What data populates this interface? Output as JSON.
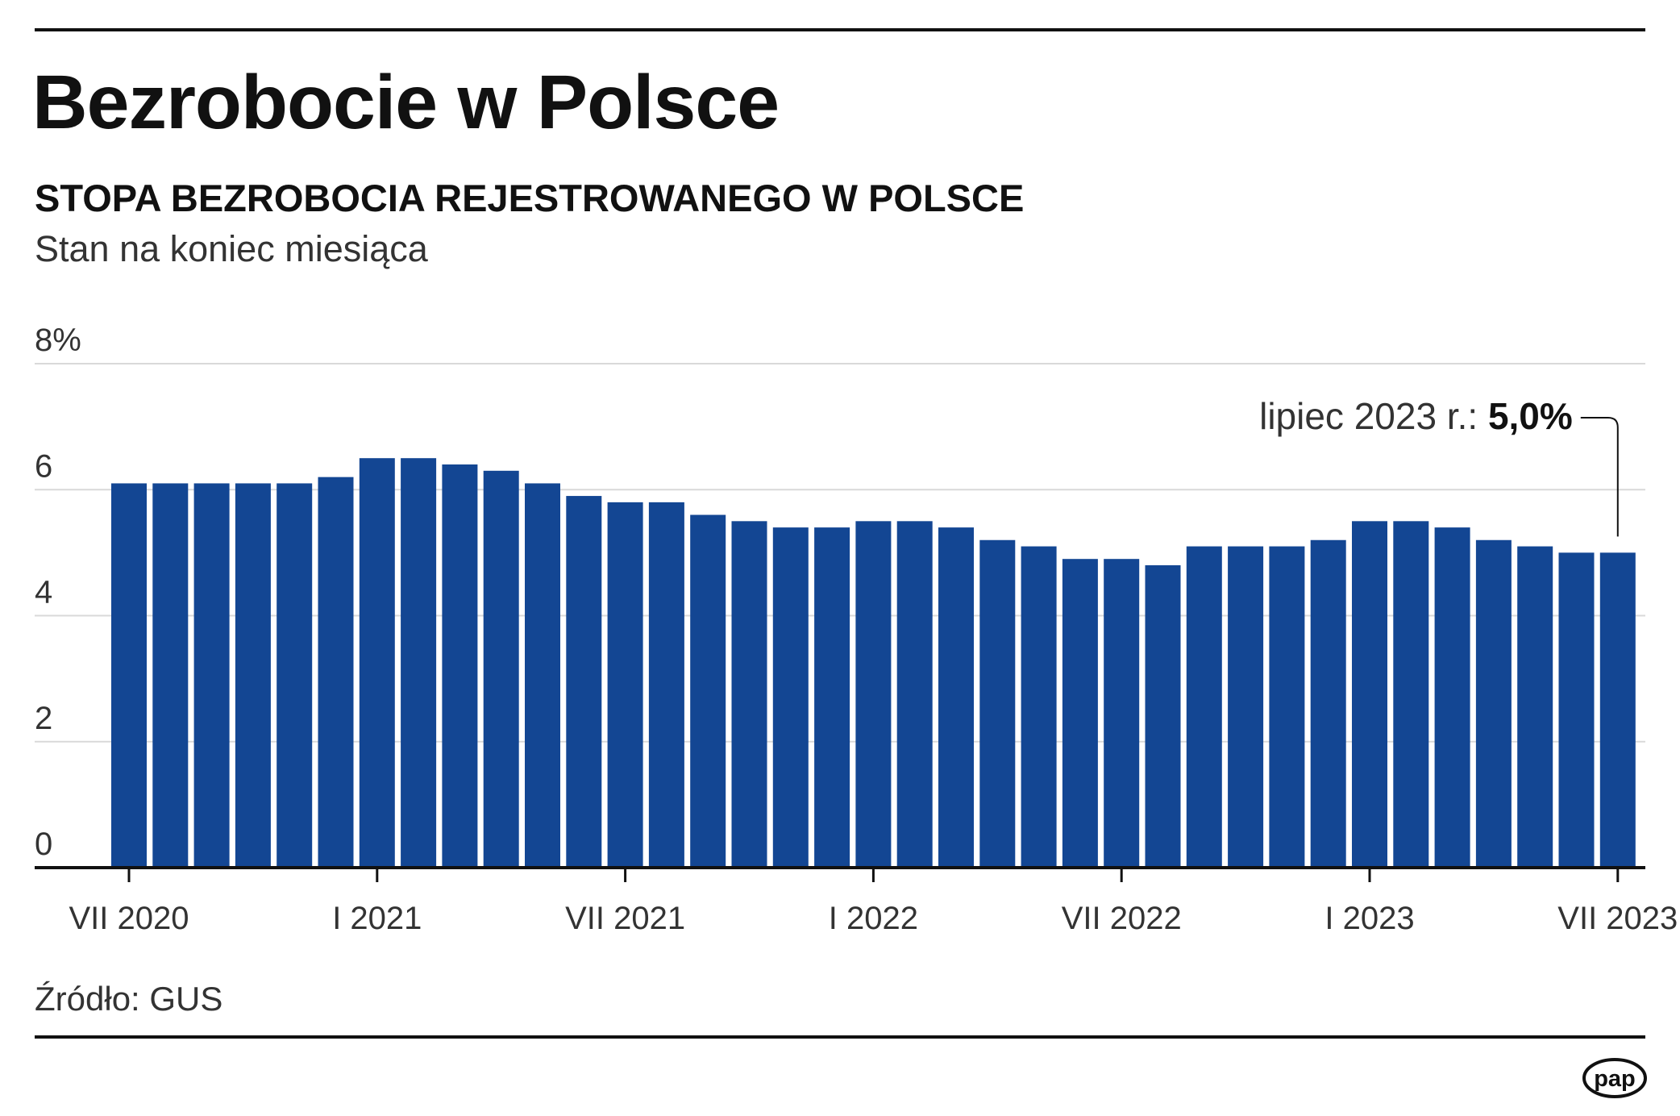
{
  "title": "Bezrobocie w Polsce",
  "subtitle": "STOPA BEZROBOCIA REJESTROWANEGO W POLSCE",
  "note": "Stan na koniec miesiąca",
  "source": "Źródło: GUS",
  "logo_text": "pap",
  "colors": {
    "bar": "#134693",
    "grid": "#d9d9d9",
    "axis": "#111111",
    "text": "#333333"
  },
  "chart_data": {
    "type": "bar",
    "title": "STOPA BEZROBOCIA REJESTROWANEGO W POLSCE",
    "ylabel": "",
    "xlabel": "",
    "ylim": [
      0,
      8
    ],
    "yticks": [
      {
        "value": 0,
        "label": "0"
      },
      {
        "value": 2,
        "label": "2"
      },
      {
        "value": 4,
        "label": "4"
      },
      {
        "value": 6,
        "label": "6"
      },
      {
        "value": 8,
        "label": "8%"
      }
    ],
    "grid": true,
    "xticks": [
      {
        "index": 0,
        "label": "VII 2020"
      },
      {
        "index": 6,
        "label": "I 2021"
      },
      {
        "index": 12,
        "label": "VII 2021"
      },
      {
        "index": 18,
        "label": "I 2022"
      },
      {
        "index": 24,
        "label": "VII 2022"
      },
      {
        "index": 30,
        "label": "I 2023"
      },
      {
        "index": 36,
        "label": "VII 2023"
      }
    ],
    "values": [
      6.1,
      6.1,
      6.1,
      6.1,
      6.1,
      6.2,
      6.5,
      6.5,
      6.4,
      6.3,
      6.1,
      5.9,
      5.8,
      5.8,
      5.6,
      5.5,
      5.4,
      5.4,
      5.5,
      5.5,
      5.4,
      5.2,
      5.1,
      4.9,
      4.9,
      4.8,
      5.1,
      5.1,
      5.1,
      5.2,
      5.5,
      5.5,
      5.4,
      5.2,
      5.1,
      5.0,
      5.0
    ],
    "annotation": {
      "index": 36,
      "prefix": "lipiec 2023 r.: ",
      "value_text": "5,0%"
    }
  }
}
